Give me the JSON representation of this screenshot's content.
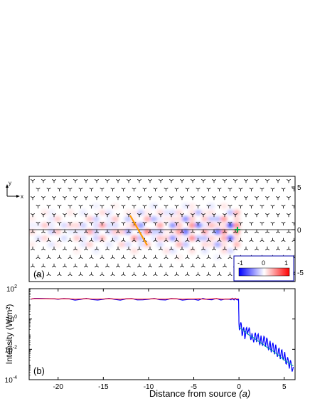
{
  "figure": {
    "panel_a": {
      "label": "(a)",
      "axis_indicator": {
        "y_label": "y",
        "x_label": "x"
      },
      "right_ticks": [
        "5",
        "0",
        "-5"
      ],
      "colorbar": {
        "min_label": "-1",
        "mid_label": "0",
        "max_label": "1",
        "colors": {
          "low": "#0000ff",
          "mid": "#ffffff",
          "high": "#ff0000"
        }
      },
      "colors": {
        "waveguide_line": "#ff9900",
        "source_marker": "#00aa44",
        "lattice": "#000000"
      }
    },
    "panel_b": {
      "label": "(b)",
      "xlabel": "Distance from source",
      "xlabel_unit": "(a)",
      "ylabel": "Intensity (W/m²)",
      "x_ticks": [
        "-20",
        "-15",
        "-10",
        "-5",
        "0",
        "5"
      ],
      "y_ticks": [
        "10",
        "10",
        "10",
        "10"
      ],
      "y_tick_exponents": [
        "2",
        "0",
        "-2",
        "-4"
      ]
    }
  },
  "chart_data": {
    "type": "line",
    "xlabel": "Distance from source (a)",
    "ylabel": "Intensity (W/m²)",
    "xlim": [
      -23.2,
      6.2
    ],
    "ylim_log10": [
      -4,
      2
    ],
    "yscale": "log",
    "grid": false,
    "series": [
      {
        "color": "#0000ff",
        "x": [
          -23,
          -20,
          -15,
          -10,
          -5,
          -1,
          -0.05,
          0,
          0.3,
          0.6,
          1,
          1.5,
          2,
          2.5,
          3,
          3.5,
          4,
          4.5,
          5,
          5.5,
          6
        ],
        "y": [
          20,
          20,
          20,
          20,
          20,
          20,
          20,
          0.5,
          0.2,
          0.1,
          0.15,
          0.07,
          0.05,
          0.04,
          0.03,
          0.015,
          0.01,
          0.005,
          0.004,
          0.001,
          0.0007
        ]
      },
      {
        "color": "#ff0000",
        "x": [
          -23,
          -20,
          -15,
          -10,
          -5,
          -0.05
        ],
        "y": [
          21,
          21,
          21,
          21,
          21,
          21
        ]
      },
      {
        "color": "#00a0a0",
        "x": [
          0,
          1,
          2,
          3,
          4,
          5,
          6
        ],
        "y": [
          0.3,
          0.1,
          0.04,
          0.015,
          0.006,
          0.002,
          0.0008
        ]
      }
    ]
  }
}
